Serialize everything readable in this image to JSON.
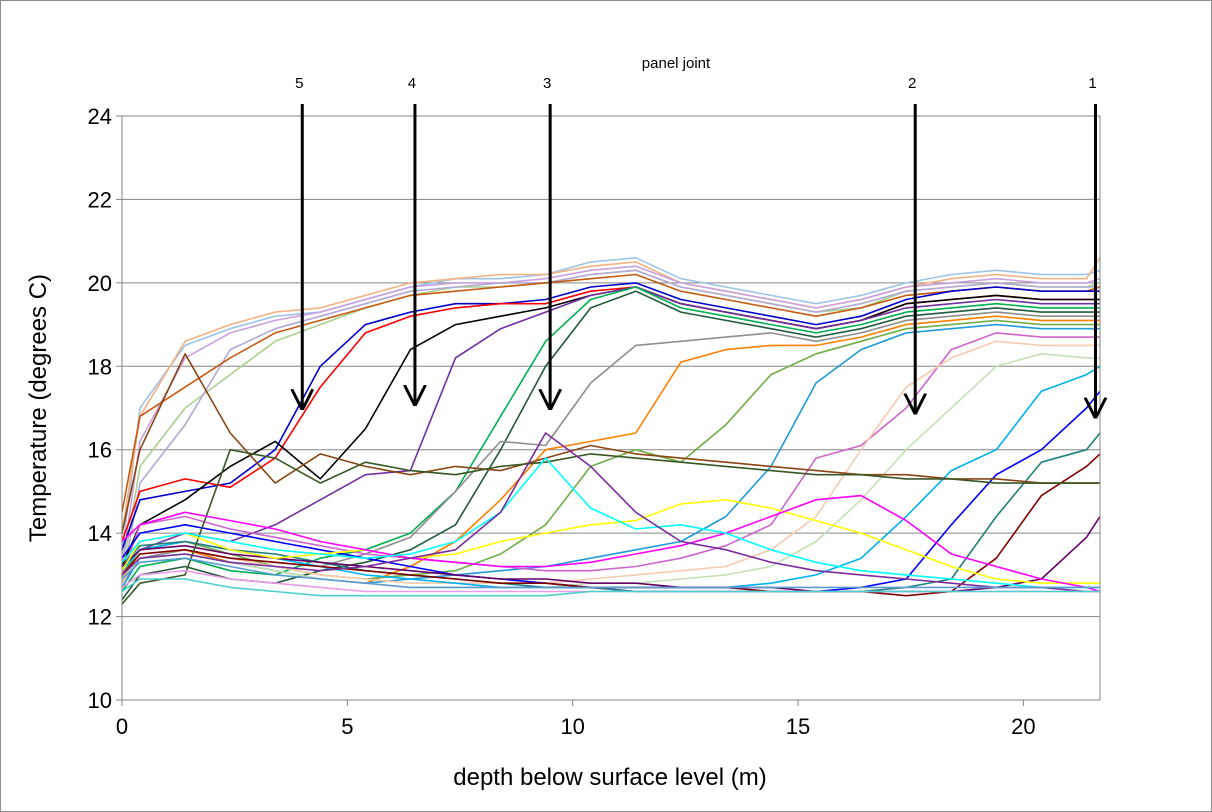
{
  "chart_data": {
    "type": "line",
    "title": "",
    "xlabel": "depth below surface level  (m)",
    "ylabel": "Temperature (degrees C)",
    "xlim": [
      0,
      21.7
    ],
    "ylim": [
      10,
      24
    ],
    "xticks": [
      0,
      5,
      10,
      15,
      20
    ],
    "yticks": [
      10,
      12,
      14,
      16,
      18,
      20,
      22,
      24
    ],
    "grid": "horizontal",
    "legend": "none",
    "depths": [
      0,
      0.4,
      1.4,
      2.4,
      3.4,
      4.4,
      5.4,
      6.4,
      7.4,
      8.4,
      9.4,
      10.4,
      11.4,
      12.4,
      13.4,
      14.4,
      15.4,
      16.4,
      17.4,
      18.4,
      19.4,
      20.4,
      21.4,
      21.7
    ],
    "annotation_title": "panel joint",
    "panel_joints": [
      {
        "label": "5",
        "x": 4.0,
        "y_tip": 17.0
      },
      {
        "label": "4",
        "x": 6.5,
        "y_tip": 17.1
      },
      {
        "label": "3",
        "x": 9.5,
        "y_tip": 17.0
      },
      {
        "label": "2",
        "x": 17.6,
        "y_tip": 16.9
      },
      {
        "label": "1",
        "x": 21.6,
        "y_tip": 16.8
      }
    ],
    "series": [
      {
        "color": "#9dc3e6",
        "values": [
          13.5,
          17.0,
          18.5,
          18.9,
          19.2,
          19.3,
          19.6,
          19.9,
          20.1,
          20.1,
          20.2,
          20.5,
          20.6,
          20.1,
          19.9,
          19.7,
          19.5,
          19.7,
          20.0,
          20.2,
          20.3,
          20.2,
          20.2,
          20.3
        ]
      },
      {
        "color": "#f4b183",
        "values": [
          14.0,
          16.8,
          18.6,
          19.0,
          19.3,
          19.4,
          19.7,
          20.0,
          20.1,
          20.2,
          20.2,
          20.4,
          20.5,
          20.0,
          19.8,
          19.6,
          19.4,
          19.6,
          19.9,
          20.1,
          20.2,
          20.1,
          20.1,
          20.6
        ]
      },
      {
        "color": "#c9a0dc",
        "values": [
          13.2,
          16.2,
          18.2,
          18.8,
          19.1,
          19.3,
          19.6,
          19.9,
          20.0,
          20.0,
          20.1,
          20.3,
          20.4,
          20.0,
          19.8,
          19.6,
          19.4,
          19.6,
          19.9,
          20.0,
          20.1,
          20.0,
          20.0,
          20.1
        ]
      },
      {
        "color": "#a9d18e",
        "values": [
          13.0,
          15.6,
          17.0,
          17.8,
          18.6,
          19.0,
          19.4,
          19.7,
          19.9,
          19.9,
          20.0,
          20.2,
          20.3,
          19.9,
          19.7,
          19.5,
          19.3,
          19.4,
          19.8,
          19.9,
          20.0,
          19.9,
          19.9,
          20.0
        ]
      },
      {
        "color": "#b4a7d6",
        "values": [
          12.8,
          15.2,
          16.6,
          18.4,
          18.9,
          19.2,
          19.5,
          19.8,
          19.9,
          20.0,
          20.0,
          20.2,
          20.3,
          19.9,
          19.7,
          19.5,
          19.3,
          19.5,
          19.8,
          19.9,
          20.0,
          19.9,
          19.9,
          19.9
        ]
      },
      {
        "color": "#c55a11",
        "values": [
          14.5,
          16.8,
          17.5,
          18.2,
          18.8,
          19.1,
          19.4,
          19.7,
          19.8,
          19.9,
          20.0,
          20.1,
          20.2,
          19.8,
          19.6,
          19.4,
          19.2,
          19.4,
          19.7,
          19.8,
          19.9,
          19.8,
          19.8,
          19.9
        ]
      },
      {
        "color": "#0000cc",
        "values": [
          13.6,
          14.8,
          15.0,
          15.2,
          16.0,
          18.0,
          19.0,
          19.3,
          19.5,
          19.5,
          19.6,
          19.9,
          20.0,
          19.6,
          19.4,
          19.2,
          19.0,
          19.2,
          19.6,
          19.8,
          19.9,
          19.8,
          19.8,
          19.8
        ]
      },
      {
        "color": "#ff0000",
        "values": [
          13.8,
          15.0,
          15.3,
          15.1,
          15.8,
          17.5,
          18.8,
          19.2,
          19.4,
          19.5,
          19.5,
          19.8,
          19.9,
          19.5,
          19.3,
          19.1,
          18.9,
          19.1,
          19.5,
          19.6,
          19.7,
          19.6,
          19.6,
          19.6
        ]
      },
      {
        "color": "#000000",
        "values": [
          13.2,
          14.2,
          14.8,
          15.6,
          16.2,
          15.3,
          16.5,
          18.4,
          19.0,
          19.2,
          19.4,
          19.7,
          19.9,
          19.5,
          19.3,
          19.1,
          18.9,
          19.1,
          19.5,
          19.6,
          19.7,
          19.6,
          19.6,
          19.6
        ]
      },
      {
        "color": "#7030a0",
        "values": [
          13.0,
          13.6,
          14.0,
          13.8,
          14.2,
          14.8,
          15.4,
          15.5,
          18.2,
          18.9,
          19.3,
          19.7,
          19.9,
          19.5,
          19.3,
          19.1,
          18.9,
          19.1,
          19.4,
          19.5,
          19.6,
          19.5,
          19.5,
          19.5
        ]
      },
      {
        "color": "#00b050",
        "values": [
          12.6,
          13.2,
          13.4,
          13.1,
          13.0,
          13.4,
          13.6,
          14.0,
          15.0,
          16.8,
          18.6,
          19.6,
          19.9,
          19.4,
          19.2,
          19.0,
          18.8,
          19.0,
          19.3,
          19.4,
          19.5,
          19.4,
          19.4,
          19.4
        ]
      },
      {
        "color": "#215a3a",
        "values": [
          12.4,
          13.0,
          13.2,
          12.9,
          12.8,
          13.1,
          13.3,
          13.6,
          14.2,
          16.0,
          18.0,
          19.4,
          19.8,
          19.3,
          19.1,
          18.9,
          18.7,
          18.9,
          19.2,
          19.3,
          19.4,
          19.3,
          19.3,
          19.3
        ]
      },
      {
        "color": "#8e8e8e",
        "values": [
          12.8,
          13.4,
          13.6,
          13.4,
          13.3,
          13.2,
          13.5,
          13.9,
          15.0,
          16.2,
          16.1,
          17.6,
          18.5,
          18.6,
          18.7,
          18.8,
          18.6,
          18.8,
          19.1,
          19.2,
          19.3,
          19.2,
          19.2,
          19.2
        ]
      },
      {
        "color": "#ff7f00",
        "values": [
          12.9,
          13.5,
          13.6,
          13.3,
          13.1,
          12.9,
          12.8,
          13.2,
          13.8,
          14.8,
          16.0,
          16.2,
          16.4,
          18.1,
          18.4,
          18.5,
          18.5,
          18.7,
          19.0,
          19.1,
          19.2,
          19.1,
          19.1,
          19.1
        ]
      },
      {
        "color": "#70ad47",
        "values": [
          13.0,
          13.6,
          13.8,
          13.5,
          13.2,
          13.0,
          12.9,
          13.0,
          13.1,
          13.5,
          14.2,
          15.6,
          16.0,
          15.7,
          16.6,
          17.8,
          18.3,
          18.6,
          18.9,
          19.0,
          19.1,
          19.0,
          19.0,
          19.0
        ]
      },
      {
        "color": "#1f9bd7",
        "values": [
          12.7,
          13.4,
          13.5,
          13.3,
          13.1,
          12.9,
          12.8,
          12.9,
          13.0,
          13.1,
          13.2,
          13.4,
          13.6,
          13.8,
          14.4,
          15.6,
          17.6,
          18.4,
          18.8,
          18.9,
          19.0,
          18.9,
          18.9,
          18.9
        ]
      },
      {
        "color": "#cc66cc",
        "values": [
          13.0,
          14.2,
          14.4,
          14.1,
          13.9,
          13.7,
          13.5,
          13.4,
          13.3,
          13.2,
          13.1,
          13.1,
          13.2,
          13.4,
          13.7,
          14.2,
          15.8,
          16.1,
          17.0,
          18.4,
          18.8,
          18.7,
          18.7,
          18.7
        ]
      },
      {
        "color": "#f8cbad",
        "values": [
          12.8,
          13.5,
          13.6,
          13.4,
          13.2,
          13.0,
          12.9,
          12.8,
          12.8,
          12.8,
          12.8,
          12.9,
          13.0,
          13.1,
          13.2,
          13.6,
          14.4,
          16.0,
          17.5,
          18.2,
          18.6,
          18.5,
          18.5,
          18.5
        ]
      },
      {
        "color": "#c5e0b4",
        "values": [
          12.9,
          13.4,
          13.5,
          13.3,
          13.1,
          12.9,
          12.8,
          12.7,
          12.7,
          12.7,
          12.7,
          12.8,
          12.8,
          12.9,
          13.0,
          13.2,
          13.8,
          14.8,
          16.0,
          17.0,
          18.0,
          18.3,
          18.2,
          18.2
        ]
      },
      {
        "color": "#00b0f0",
        "values": [
          13.1,
          13.6,
          13.8,
          13.6,
          13.4,
          13.2,
          13.0,
          12.9,
          12.8,
          12.7,
          12.7,
          12.7,
          12.7,
          12.7,
          12.7,
          12.8,
          13.0,
          13.4,
          14.4,
          15.5,
          16.0,
          17.4,
          17.8,
          18.0
        ]
      },
      {
        "color": "#0000ff",
        "values": [
          13.4,
          14.0,
          14.2,
          14.0,
          13.8,
          13.6,
          13.4,
          13.2,
          13.0,
          12.9,
          12.8,
          12.7,
          12.6,
          12.6,
          12.6,
          12.6,
          12.6,
          12.7,
          12.9,
          14.2,
          15.4,
          16.0,
          17.0,
          17.4
        ]
      },
      {
        "color": "#217f7f",
        "values": [
          13.2,
          13.7,
          13.8,
          13.6,
          13.5,
          13.3,
          13.1,
          13.0,
          12.9,
          12.8,
          12.7,
          12.7,
          12.6,
          12.6,
          12.6,
          12.6,
          12.6,
          12.6,
          12.7,
          12.9,
          14.4,
          15.7,
          16.0,
          16.4
        ]
      },
      {
        "color": "#800000",
        "values": [
          13.0,
          13.5,
          13.6,
          13.4,
          13.3,
          13.2,
          13.1,
          13.0,
          12.9,
          12.8,
          12.8,
          12.7,
          12.7,
          12.7,
          12.7,
          12.6,
          12.6,
          12.6,
          12.5,
          12.6,
          13.4,
          14.9,
          15.6,
          15.9
        ]
      },
      {
        "color": "#660066",
        "values": [
          13.2,
          13.6,
          13.7,
          13.5,
          13.4,
          13.3,
          13.2,
          13.1,
          13.0,
          12.9,
          12.9,
          12.8,
          12.8,
          12.7,
          12.7,
          12.7,
          12.6,
          12.6,
          12.6,
          12.6,
          12.7,
          12.9,
          13.9,
          14.4
        ]
      },
      {
        "color": "#8b4513",
        "values": [
          14.0,
          16.0,
          18.3,
          16.4,
          15.2,
          15.9,
          15.6,
          15.4,
          15.6,
          15.5,
          15.8,
          16.1,
          15.9,
          15.8,
          15.7,
          15.6,
          15.5,
          15.4,
          15.4,
          15.3,
          15.3,
          15.2,
          15.2,
          15.2
        ]
      },
      {
        "color": "#385723",
        "values": [
          12.3,
          12.8,
          13.0,
          16.0,
          15.8,
          15.2,
          15.7,
          15.5,
          15.4,
          15.6,
          15.7,
          15.9,
          15.8,
          15.7,
          15.6,
          15.5,
          15.4,
          15.4,
          15.3,
          15.3,
          15.2,
          15.2,
          15.2,
          15.2
        ]
      },
      {
        "color": "#ffff00",
        "values": [
          13.1,
          13.8,
          14.0,
          13.6,
          13.4,
          13.5,
          13.6,
          13.4,
          13.5,
          13.8,
          14.0,
          14.2,
          14.3,
          14.7,
          14.8,
          14.6,
          14.3,
          14.0,
          13.6,
          13.2,
          12.9,
          12.8,
          12.8,
          12.8
        ]
      },
      {
        "color": "#ff00ff",
        "values": [
          13.8,
          14.2,
          14.5,
          14.3,
          14.1,
          13.8,
          13.6,
          13.4,
          13.3,
          13.2,
          13.2,
          13.3,
          13.5,
          13.7,
          14.0,
          14.4,
          14.8,
          14.9,
          14.3,
          13.5,
          13.2,
          12.9,
          12.7,
          12.6
        ]
      },
      {
        "color": "#00ffff",
        "values": [
          13.3,
          13.8,
          14.0,
          13.8,
          13.6,
          13.5,
          13.4,
          13.5,
          13.8,
          14.5,
          15.8,
          14.6,
          14.1,
          14.2,
          14.0,
          13.6,
          13.3,
          13.1,
          13.0,
          12.9,
          12.8,
          12.7,
          12.7,
          12.7
        ]
      },
      {
        "color": "#7b2d9e",
        "values": [
          13.0,
          13.4,
          13.5,
          13.3,
          13.2,
          13.1,
          13.2,
          13.4,
          13.6,
          14.5,
          16.4,
          15.6,
          14.5,
          13.8,
          13.6,
          13.3,
          13.1,
          13.0,
          12.9,
          12.8,
          12.7,
          12.7,
          12.6,
          12.6
        ]
      },
      {
        "color": "#5b9bd5",
        "values": [
          12.9,
          13.3,
          13.4,
          13.2,
          13.0,
          12.9,
          12.8,
          12.7,
          12.7,
          12.7,
          12.7,
          12.7,
          12.7,
          12.7,
          12.7,
          12.7,
          12.7,
          12.7,
          12.7,
          12.7,
          12.7,
          12.7,
          12.7,
          12.7
        ]
      },
      {
        "color": "#ea9bea",
        "values": [
          12.7,
          13.0,
          13.1,
          12.9,
          12.8,
          12.7,
          12.6,
          12.6,
          12.6,
          12.6,
          12.6,
          12.6,
          12.6,
          12.6,
          12.6,
          12.6,
          12.6,
          12.6,
          12.6,
          12.6,
          12.6,
          12.6,
          12.6,
          12.6
        ]
      },
      {
        "color": "#4bcfcf",
        "values": [
          12.6,
          12.9,
          12.9,
          12.7,
          12.6,
          12.5,
          12.5,
          12.5,
          12.5,
          12.5,
          12.5,
          12.6,
          12.6,
          12.6,
          12.6,
          12.6,
          12.6,
          12.6,
          12.6,
          12.6,
          12.6,
          12.6,
          12.6,
          12.6
        ]
      }
    ]
  }
}
